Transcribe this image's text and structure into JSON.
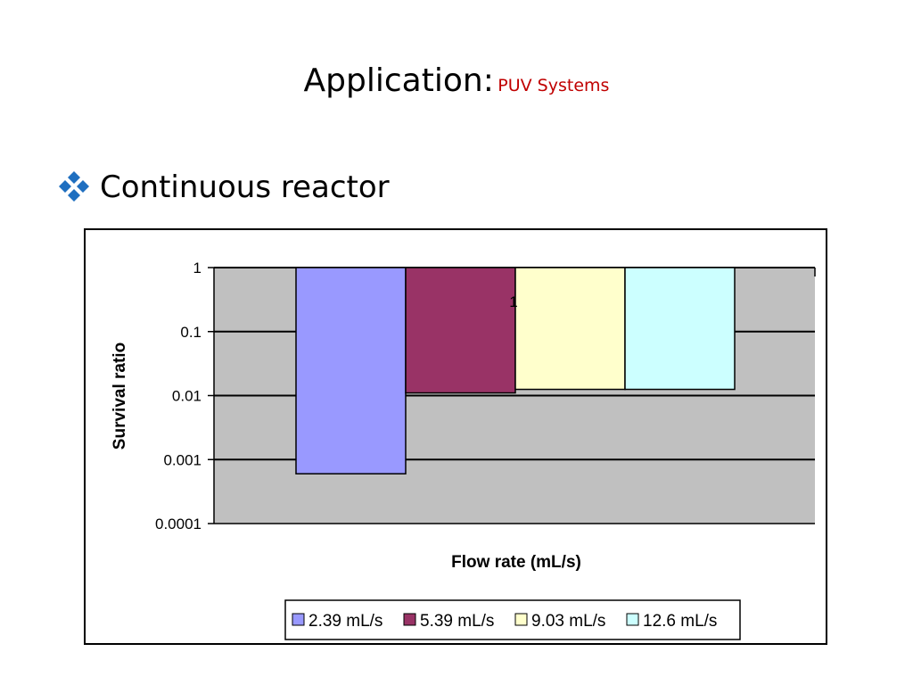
{
  "slide": {
    "title": "Application:",
    "subtitle": "PUV Systems",
    "bullet_text": "Continuous reactor",
    "bullet_icon": "diamond-cluster-icon",
    "accent_color": "#c00000"
  },
  "chart_data": {
    "type": "bar",
    "title": "",
    "xlabel": "Flow rate (mL/s)",
    "ylabel": "Survival ratio",
    "y_scale": "log",
    "ylim": [
      0.0001,
      1
    ],
    "y_tick_labels": [
      "1",
      "0.1",
      "0.01",
      "0.001",
      "0.0001"
    ],
    "y_ticks": [
      1,
      0.1,
      0.01,
      0.001,
      0.0001
    ],
    "grid": true,
    "legend_position": "bottom",
    "plot_background": "#c0c0c0",
    "stray_label": "1",
    "series": [
      {
        "name": "2.39 mL/s",
        "value": 0.0006,
        "color": "#9999ff"
      },
      {
        "name": "5.39 mL/s",
        "value": 0.011,
        "color": "#993366"
      },
      {
        "name": "9.03 mL/s",
        "value": 0.0125,
        "color": "#ffffcc"
      },
      {
        "name": "12.6 mL/s",
        "value": 0.0125,
        "color": "#ccffff"
      }
    ]
  }
}
